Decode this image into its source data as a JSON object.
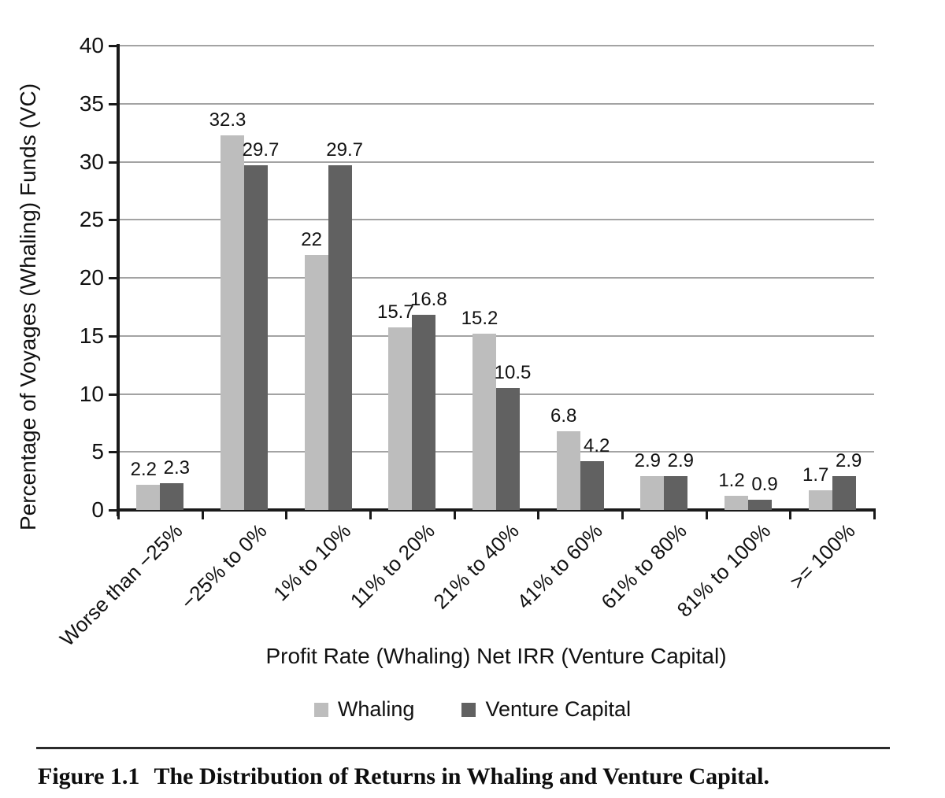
{
  "figure": {
    "caption_label": "Figure 1.1",
    "caption_text": "The Distribution of Returns in Whaling and Venture Capital."
  },
  "chart_data": {
    "type": "bar",
    "title": "",
    "xlabel": "Profit Rate (Whaling) Net IRR (Venture Capital)",
    "ylabel": "Percentage of Voyages (Whaling) Funds (VC)",
    "categories": [
      "Worse than −25%",
      "−25% to 0%",
      "1% to 10%",
      "11% to 20%",
      "21% to 40%",
      "41% to 60%",
      "61% to 80%",
      "81% to 100%",
      ">= 100%"
    ],
    "series": [
      {
        "name": "Whaling",
        "color": "#bdbdbd",
        "values": [
          2.2,
          32.3,
          22,
          15.7,
          15.2,
          6.8,
          2.9,
          1.2,
          1.7
        ],
        "labels": [
          "2.2",
          "32.3",
          "22",
          "15.7",
          "15.2",
          "6.8",
          "2.9",
          "1.2",
          "1.7"
        ]
      },
      {
        "name": "Venture Capital",
        "color": "#616161",
        "values": [
          2.3,
          29.7,
          29.7,
          16.8,
          10.5,
          4.2,
          2.9,
          0.9,
          2.9
        ],
        "labels": [
          "2.3",
          "29.7",
          "29.7",
          "16.8",
          "10.5",
          "4.2",
          "2.9",
          "0.9",
          "2.9"
        ]
      }
    ],
    "ylim": [
      0,
      40
    ],
    "yticks": [
      0,
      5,
      10,
      15,
      20,
      25,
      30,
      35,
      40
    ],
    "grid": true,
    "legend_position": "bottom"
  },
  "colors": {
    "gridline": "#a3a3a3",
    "axis": "#1a1a1a"
  }
}
